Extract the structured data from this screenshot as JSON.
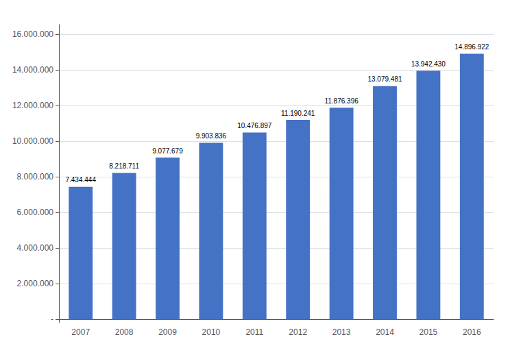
{
  "chart_data": {
    "type": "bar",
    "categories": [
      "2007",
      "2008",
      "2009",
      "2010",
      "2011",
      "2012",
      "2013",
      "2014",
      "2015",
      "2016"
    ],
    "values": [
      7434444,
      8218711,
      9077679,
      9903836,
      10476897,
      11190241,
      11876396,
      13079481,
      13942430,
      14896922
    ],
    "value_labels": [
      "7.434.444",
      "8.218.711",
      "9.077.679",
      "9.903.836",
      "10.476.897",
      "11.190.241",
      "11.876.396",
      "13.079.481",
      "13.942.430",
      "14.896.922"
    ],
    "data_labels": true,
    "color": "#4472C4",
    "ylim": [
      -176000,
      16528000
    ],
    "yticks": [
      {
        "value": 0,
        "label": "-"
      },
      {
        "value": 2000000,
        "label": "2.000.000"
      },
      {
        "value": 4000000,
        "label": "4.000.000"
      },
      {
        "value": 6000000,
        "label": "6.000.000"
      },
      {
        "value": 8000000,
        "label": "8.000.000"
      },
      {
        "value": 10000000,
        "label": "10.000.000"
      },
      {
        "value": 12000000,
        "label": "12.000.000"
      },
      {
        "value": 14000000,
        "label": "14.000.000"
      },
      {
        "value": 16000000,
        "label": "16.000.000"
      }
    ],
    "grid": true
  }
}
